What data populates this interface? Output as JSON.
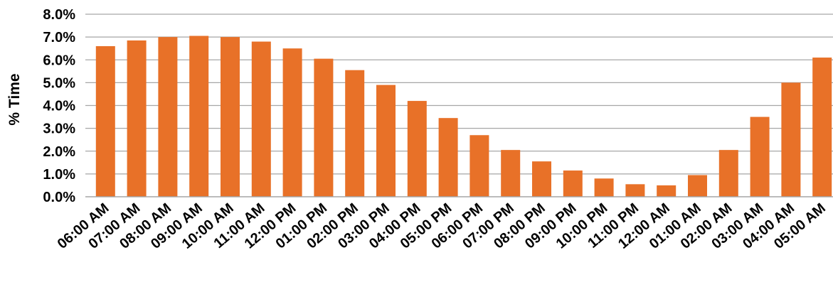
{
  "chart_data": {
    "type": "bar",
    "title": "",
    "xlabel": "",
    "ylabel": "% Time",
    "ylim": [
      0,
      8
    ],
    "y_tick_values": [
      0,
      1,
      2,
      3,
      4,
      5,
      6,
      7,
      8
    ],
    "y_tick_labels": [
      "0.0%",
      "1.0%",
      "2.0%",
      "3.0%",
      "4.0%",
      "5.0%",
      "6.0%",
      "7.0%",
      "8.0%"
    ],
    "grid": "horizontal",
    "bar_color": "#E87128",
    "grid_color": "#A6A6A6",
    "categories": [
      "06:00 AM",
      "07:00 AM",
      "08:00 AM",
      "09:00 AM",
      "10:00 AM",
      "11:00 AM",
      "12:00 PM",
      "01:00 PM",
      "02:00 PM",
      "03:00 PM",
      "04:00 PM",
      "05:00 PM",
      "06:00 PM",
      "07:00 PM",
      "08:00 PM",
      "09:00 PM",
      "10:00 PM",
      "11:00 PM",
      "12:00 AM",
      "01:00 AM",
      "02:00 AM",
      "03:00 AM",
      "04:00 AM",
      "05:00 AM"
    ],
    "values": [
      6.6,
      6.85,
      7.0,
      7.05,
      7.0,
      6.8,
      6.5,
      6.05,
      5.55,
      4.9,
      4.2,
      3.45,
      2.7,
      2.05,
      1.55,
      1.15,
      0.8,
      0.55,
      0.5,
      0.95,
      2.05,
      3.5,
      5.0,
      6.1
    ]
  }
}
